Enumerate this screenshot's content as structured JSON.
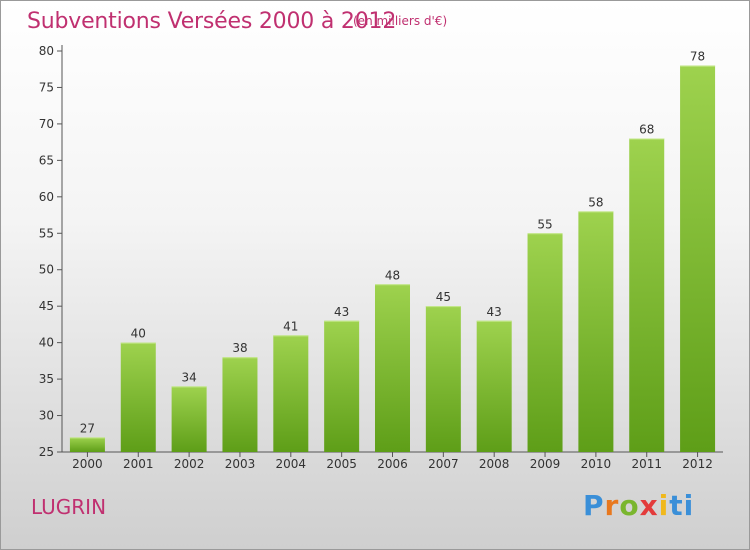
{
  "header": {
    "title": "Subventions Versées 2000 à 2012",
    "subtitle": "(en milliers d'€)"
  },
  "footer": {
    "commune": "LUGRIN",
    "logo_letters": [
      "P",
      "r",
      "o",
      "x",
      "i",
      "ti"
    ]
  },
  "colors": {
    "accent": "#c03070",
    "bar_top": "#9ed24e",
    "bar_bottom": "#5e9e18",
    "axis": "#555555"
  },
  "chart_data": {
    "type": "bar",
    "categories": [
      "2000",
      "2001",
      "2002",
      "2003",
      "2004",
      "2005",
      "2006",
      "2007",
      "2008",
      "2009",
      "2010",
      "2011",
      "2012"
    ],
    "values": [
      27,
      40,
      34,
      38,
      41,
      43,
      48,
      45,
      43,
      55,
      58,
      68,
      78
    ],
    "title": "Subventions Versées 2000 à 2012",
    "subtitle": "(en milliers d'€)",
    "xlabel": "",
    "ylabel": "",
    "ylim": [
      25,
      80
    ],
    "yticks": [
      25,
      30,
      35,
      40,
      45,
      50,
      55,
      60,
      65,
      70,
      75,
      80
    ],
    "grid": false,
    "legend": "none",
    "data_labels": true
  }
}
